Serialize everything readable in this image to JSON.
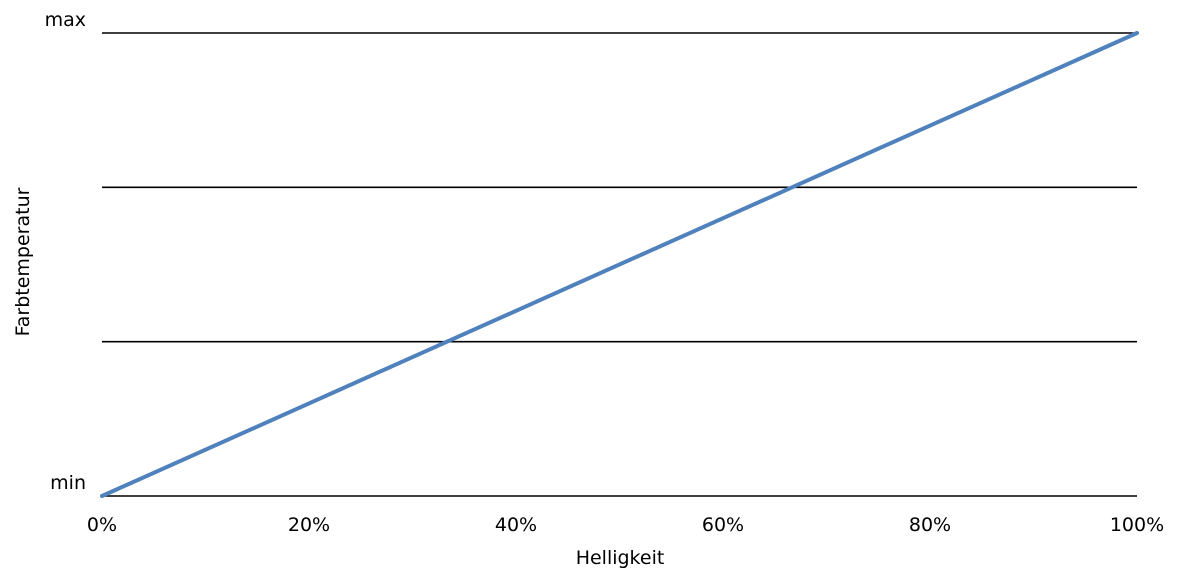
{
  "chart_data": {
    "type": "line",
    "title": "",
    "xlabel": "Helligkeit",
    "ylabel": "Farbtemperatur",
    "x_ticks": [
      "0%",
      "20%",
      "40%",
      "60%",
      "80%",
      "100%"
    ],
    "y_ticks": [
      "min",
      "",
      "",
      "max"
    ],
    "xlim": [
      0,
      100
    ],
    "ylim": [
      0,
      3
    ],
    "grid": "horizontal",
    "series": [
      {
        "x": [
          0,
          100
        ],
        "y": [
          0,
          3
        ],
        "color": "#4f81bd"
      }
    ]
  }
}
